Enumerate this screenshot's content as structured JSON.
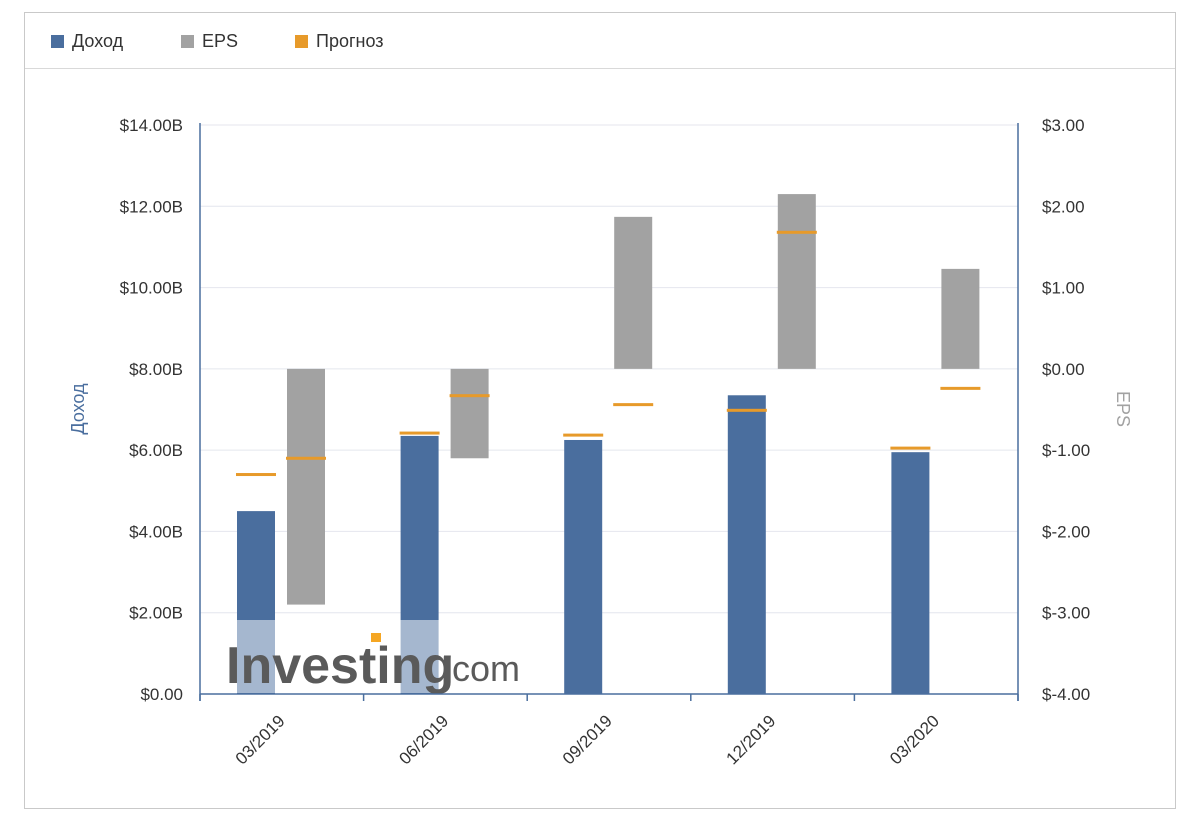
{
  "legend": [
    {
      "label": "Доход",
      "color": "#4a6e9e"
    },
    {
      "label": "EPS",
      "color": "#a2a2a2"
    },
    {
      "label": "Прогноз",
      "color": "#e79a2a"
    }
  ],
  "watermark": {
    "brand": "Investing",
    "suffix": ".com",
    "accent": "#f5a623"
  },
  "chart_data": {
    "type": "bar",
    "categories": [
      "03/2019",
      "06/2019",
      "09/2019",
      "12/2019",
      "03/2020"
    ],
    "series": [
      {
        "name": "Доход",
        "axis": "left",
        "values": [
          4.5,
          6.35,
          6.25,
          7.35,
          5.95
        ],
        "forecast": [
          5.4,
          6.42,
          6.37,
          6.98,
          6.05
        ]
      },
      {
        "name": "EPS",
        "axis": "right",
        "values": [
          -2.9,
          -1.1,
          1.87,
          2.15,
          1.23
        ],
        "forecast": [
          -1.1,
          -0.33,
          -0.44,
          1.68,
          -0.24
        ]
      }
    ],
    "colors": {
      "revenue": "#4a6e9e",
      "eps": "#a2a2a2",
      "forecast": "#e79a2a",
      "axis": "#4a6e9e"
    },
    "y_left": {
      "label": "Доход",
      "min": 0,
      "max": 14,
      "step": 2,
      "tick_labels": [
        "$0.00",
        "$2.00B",
        "$4.00B",
        "$6.00B",
        "$8.00B",
        "$10.00B",
        "$12.00B",
        "$14.00B"
      ]
    },
    "y_right": {
      "label": "EPS",
      "min": -4,
      "max": 3,
      "step": 1,
      "tick_labels": [
        "$-4.00",
        "$-3.00",
        "$-2.00",
        "$-1.00",
        "$0.00",
        "$1.00",
        "$2.00",
        "$3.00"
      ]
    },
    "grid": true,
    "legend_position": "top-left"
  }
}
